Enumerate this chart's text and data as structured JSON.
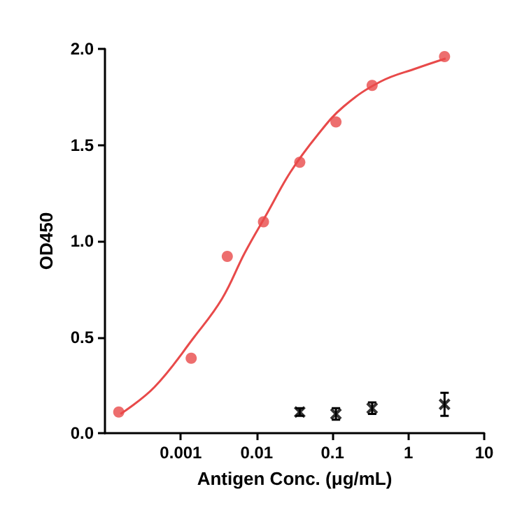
{
  "chart_data": {
    "type": "scatter",
    "xlabel": "Antigen Conc. (μg/mL)",
    "ylabel": "OD450",
    "log": "x",
    "xlim": [
      0.0001,
      10
    ],
    "xticks": [
      0.001,
      0.01,
      0.1,
      1,
      10
    ],
    "ylim": [
      0,
      2
    ],
    "yticks": [
      {
        "value": 0,
        "label": "0.0"
      },
      0.5,
      {
        "value": 1,
        "label": "1.0"
      },
      1.5,
      {
        "value": 2,
        "label": "2.0"
      }
    ],
    "grid": false,
    "series": [
      {
        "type": "line",
        "color": "#e84a4a",
        "marker": "none",
        "line_style": "solid",
        "x": [
          0.00016,
          0.00045,
          0.0015,
          0.0035,
          0.007,
          0.014,
          0.028,
          0.063,
          0.14,
          0.43,
          1.3,
          3.1
        ],
        "values": [
          0.1,
          0.24,
          0.5,
          0.7,
          0.94,
          1.15,
          1.36,
          1.55,
          1.7,
          1.83,
          1.9,
          1.95
        ]
      },
      {
        "color": "#e84a4a",
        "marker": "circle",
        "x": [
          0.000152,
          0.00137,
          0.0041,
          0.0123,
          0.037,
          0.111,
          0.333,
          3
        ],
        "values": [
          0.11,
          0.39,
          0.92,
          1.1,
          1.41,
          1.62,
          1.81,
          1.96
        ]
      },
      {
        "color": "#000000",
        "marker": "cross",
        "x": [
          0.037,
          0.111,
          0.333,
          3
        ],
        "values": [
          0.11,
          0.1,
          0.13,
          0.15
        ],
        "errors": [
          0.02,
          0.03,
          0.03,
          0.06
        ]
      }
    ]
  }
}
